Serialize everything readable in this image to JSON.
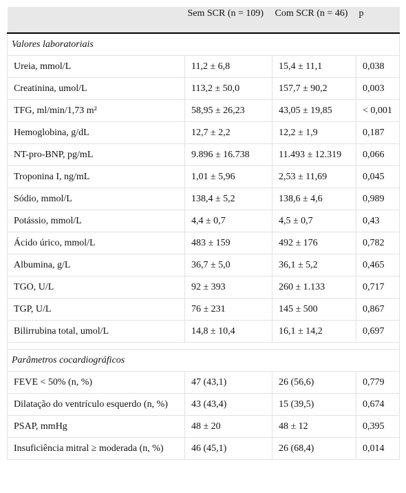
{
  "table": {
    "header": [
      "Sem SCR (n = 109)",
      "Com SCR (n = 46)",
      "p"
    ],
    "sections": [
      {
        "title": "Valores laboratoriais",
        "rows": [
          [
            "Ureia, mmol/L",
            "11,2 ± 6,8",
            "15,4 ± 11,1",
            "0,038"
          ],
          [
            "Creatinina, umol/L",
            "113,2 ± 50,0",
            "157,7 ± 90,2",
            "0,003"
          ],
          [
            "TFG, ml/min/1,73 m²",
            "58,95 ± 26,23",
            "43,05 ± 19,85",
            "< 0,001"
          ],
          [
            "Hemoglobina, g/dL",
            "12,7 ± 2,2",
            "12,2 ± 1,9",
            "0,187"
          ],
          [
            "NT-pro-BNP, pg/mL",
            "9.896 ± 16.738",
            "11.493 ± 12.319",
            "0,066"
          ],
          [
            "Troponina I, ng/mL",
            "1,01 ± 5,96",
            "2,53 ± 11,69",
            "0,045"
          ],
          [
            "Sódio, mmol/L",
            "138,4 ± 5,2",
            "138,6 ± 4,6",
            "0,989"
          ],
          [
            "Potássio, mmol/L",
            "4,4 ± 0,7",
            "4,5 ± 0,7",
            "0,43"
          ],
          [
            "Ácido úrico, mmol/L",
            "483 ± 159",
            "492 ± 176",
            "0,782"
          ],
          [
            "Albumina, g/L",
            "36,7 ± 5,0",
            "36,1 ± 5,2",
            "0,465"
          ],
          [
            "TGO, U/L",
            "92 ± 393",
            "260 ± 1.133",
            "0,717"
          ],
          [
            "TGP, U/L",
            "76 ± 231",
            "145 ± 500",
            "0,867"
          ],
          [
            "Bilirrubina total, umol/L",
            "14,8 ± 10,4",
            "16,1 ± 14,2",
            "0,697"
          ]
        ]
      },
      {
        "title": "Parâmetros cocardiográficos",
        "rows": [
          [
            "FEVE < 50% (n, %)",
            "47 (43,1)",
            "26 (56,6)",
            "0,779"
          ],
          [
            "Dilatação do ventrículo esquerdo (n, %)",
            "43 (43,4)",
            "15 (39,5)",
            "0,674"
          ],
          [
            "PSAP, mmHg",
            "48 ± 20",
            "48 ± 12",
            "0,395"
          ],
          [
            "Insuficiência mitral ≥ moderada (n, %)",
            "46 (45,1)",
            "26 (68,4)",
            "0,014"
          ]
        ]
      }
    ]
  }
}
